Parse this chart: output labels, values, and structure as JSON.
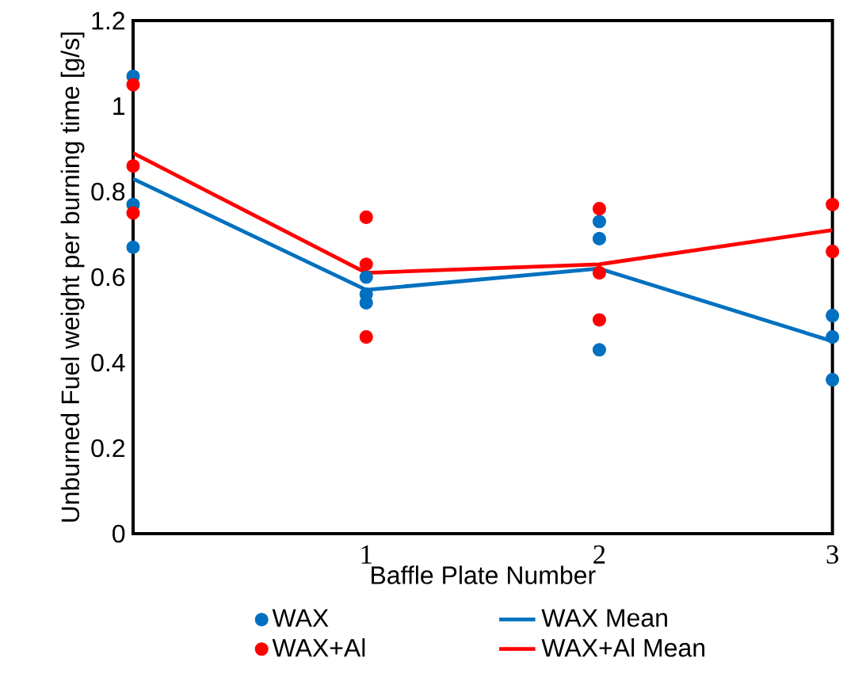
{
  "chart_data": {
    "type": "scatter",
    "xlabel": "Baffle Plate Number",
    "ylabel": "Unburned Fuel weight per burning time [g/s]",
    "xlim": [
      0,
      3
    ],
    "xticks": [
      1,
      2,
      3
    ],
    "ylim": [
      0,
      1.2
    ],
    "yticks": [
      0,
      0.2,
      0.4,
      0.6,
      0.8,
      1,
      1.2
    ],
    "grid": false,
    "legend": "bottom",
    "series": [
      {
        "name": "WAX",
        "marker": "circle",
        "color": "#0070c0",
        "x": [
          0,
          0,
          0,
          1,
          1,
          1,
          2,
          2,
          2,
          3,
          3,
          3
        ],
        "values": [
          1.07,
          0.77,
          0.67,
          0.6,
          0.56,
          0.54,
          0.73,
          0.69,
          0.43,
          0.51,
          0.46,
          0.36
        ]
      },
      {
        "name": "WAX Mean",
        "type": "line",
        "marker": "none",
        "color": "#0070c0",
        "x": [
          0,
          1,
          2,
          3
        ],
        "values": [
          0.83,
          0.57,
          0.62,
          0.45
        ]
      },
      {
        "name": "WAX+Al",
        "marker": "circle",
        "color": "#ff0000",
        "x": [
          0,
          0,
          0,
          1,
          1,
          1,
          2,
          2,
          2,
          3,
          3
        ],
        "values": [
          1.05,
          0.86,
          0.75,
          0.74,
          0.63,
          0.46,
          0.76,
          0.61,
          0.5,
          0.77,
          0.66
        ]
      },
      {
        "name": "WAX+Al Mean",
        "type": "line",
        "marker": "none",
        "color": "#ff0000",
        "x": [
          0,
          1,
          2,
          3
        ],
        "values": [
          0.89,
          0.61,
          0.63,
          0.71
        ]
      }
    ]
  }
}
